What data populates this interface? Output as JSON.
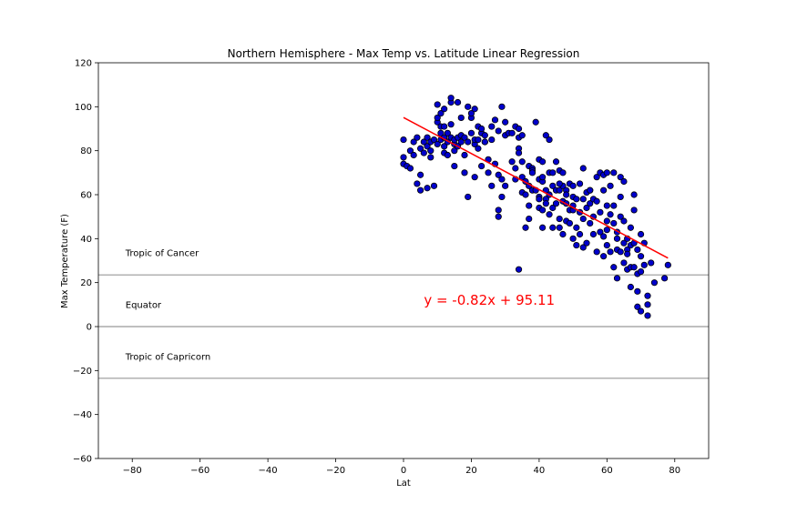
{
  "chart_data": {
    "type": "scatter",
    "title": "Northern Hemisphere - Max Temp vs. Latitude Linear Regression",
    "xlabel": "Lat",
    "ylabel": "Max Temperature (F)",
    "xlim": [
      -90,
      90
    ],
    "ylim": [
      -60,
      120
    ],
    "xticks": [
      -80,
      -60,
      -40,
      -20,
      0,
      20,
      40,
      60,
      80
    ],
    "yticks": [
      -60,
      -40,
      -20,
      0,
      20,
      40,
      60,
      80,
      100,
      120
    ],
    "grid": false,
    "point_color": "#0000cc",
    "point_edge": "#000000",
    "regression": {
      "slope": -0.82,
      "intercept": 95.11,
      "x_range": [
        0,
        78
      ],
      "color": "#ff0000",
      "equation": "y = -0.82x + 95.11",
      "label_x": 6,
      "label_y": 10
    },
    "reference_lines": [
      {
        "label": "Tropic of Cancer",
        "y": 23.5,
        "label_x": -82,
        "label_y": 32
      },
      {
        "label": "Equator",
        "y": 0,
        "label_x": -82,
        "label_y": 8.5
      },
      {
        "label": "Tropic of Capricorn",
        "y": -23.5,
        "label_x": -82,
        "label_y": -15
      }
    ],
    "reference_line_color": "#999999",
    "points": [
      [
        0,
        85
      ],
      [
        0,
        77
      ],
      [
        0,
        74
      ],
      [
        1,
        73
      ],
      [
        2,
        80
      ],
      [
        2,
        72
      ],
      [
        3,
        78
      ],
      [
        3,
        84
      ],
      [
        4,
        65
      ],
      [
        4,
        86
      ],
      [
        5,
        81
      ],
      [
        5,
        69
      ],
      [
        5,
        62
      ],
      [
        6,
        84
      ],
      [
        6,
        79
      ],
      [
        7,
        82
      ],
      [
        7,
        86
      ],
      [
        7,
        63
      ],
      [
        8,
        80
      ],
      [
        8,
        77
      ],
      [
        8,
        84
      ],
      [
        9,
        64
      ],
      [
        9,
        85
      ],
      [
        10,
        83
      ],
      [
        10,
        101
      ],
      [
        10,
        93
      ],
      [
        10,
        95
      ],
      [
        11,
        91
      ],
      [
        11,
        97
      ],
      [
        11,
        88
      ],
      [
        11,
        85
      ],
      [
        12,
        86
      ],
      [
        12,
        82
      ],
      [
        12,
        79
      ],
      [
        12,
        91
      ],
      [
        12,
        99
      ],
      [
        13,
        78
      ],
      [
        13,
        84
      ],
      [
        13,
        88
      ],
      [
        14,
        102
      ],
      [
        14,
        104
      ],
      [
        14,
        86
      ],
      [
        14,
        92
      ],
      [
        15,
        83
      ],
      [
        15,
        80
      ],
      [
        15,
        73
      ],
      [
        15,
        85
      ],
      [
        16,
        102
      ],
      [
        16,
        86
      ],
      [
        16,
        82
      ],
      [
        17,
        84
      ],
      [
        17,
        95
      ],
      [
        17,
        87
      ],
      [
        18,
        78
      ],
      [
        18,
        86
      ],
      [
        18,
        70
      ],
      [
        19,
        59
      ],
      [
        19,
        100
      ],
      [
        19,
        84
      ],
      [
        20,
        88
      ],
      [
        20,
        95
      ],
      [
        20,
        97
      ],
      [
        21,
        83
      ],
      [
        21,
        99
      ],
      [
        21,
        85
      ],
      [
        21,
        68
      ],
      [
        22,
        85
      ],
      [
        22,
        91
      ],
      [
        22,
        81
      ],
      [
        23,
        88
      ],
      [
        23,
        90
      ],
      [
        23,
        73
      ],
      [
        24,
        84
      ],
      [
        24,
        84
      ],
      [
        24,
        87
      ],
      [
        25,
        76
      ],
      [
        25,
        70
      ],
      [
        26,
        91
      ],
      [
        26,
        85
      ],
      [
        26,
        64
      ],
      [
        27,
        94
      ],
      [
        27,
        74
      ],
      [
        28,
        89
      ],
      [
        28,
        53
      ],
      [
        28,
        50
      ],
      [
        28,
        69
      ],
      [
        29,
        100
      ],
      [
        29,
        67
      ],
      [
        29,
        59
      ],
      [
        30,
        87
      ],
      [
        30,
        93
      ],
      [
        30,
        64
      ],
      [
        31,
        88
      ],
      [
        32,
        75
      ],
      [
        32,
        88
      ],
      [
        33,
        91
      ],
      [
        33,
        72
      ],
      [
        33,
        67
      ],
      [
        34,
        86
      ],
      [
        34,
        90
      ],
      [
        34,
        81
      ],
      [
        34,
        26
      ],
      [
        35,
        87
      ],
      [
        35,
        75
      ],
      [
        35,
        68
      ],
      [
        35,
        61
      ],
      [
        36,
        60
      ],
      [
        36,
        66
      ],
      [
        36,
        45
      ],
      [
        37,
        49
      ],
      [
        37,
        55
      ],
      [
        37,
        64
      ],
      [
        37,
        73
      ],
      [
        38,
        72
      ],
      [
        38,
        71
      ],
      [
        38,
        62
      ],
      [
        39,
        93
      ],
      [
        39,
        62
      ],
      [
        40,
        76
      ],
      [
        40,
        67
      ],
      [
        40,
        59
      ],
      [
        40,
        58
      ],
      [
        40,
        54
      ],
      [
        41,
        66
      ],
      [
        41,
        75
      ],
      [
        41,
        53
      ],
      [
        41,
        45
      ],
      [
        42,
        87
      ],
      [
        42,
        62
      ],
      [
        42,
        58
      ],
      [
        42,
        56
      ],
      [
        43,
        70
      ],
      [
        43,
        85
      ],
      [
        43,
        60
      ],
      [
        43,
        51
      ],
      [
        44,
        70
      ],
      [
        44,
        64
      ],
      [
        44,
        54
      ],
      [
        44,
        45
      ],
      [
        45,
        75
      ],
      [
        45,
        62
      ],
      [
        45,
        56
      ],
      [
        46,
        71
      ],
      [
        46,
        62
      ],
      [
        46,
        49
      ],
      [
        46,
        45
      ],
      [
        47,
        64
      ],
      [
        47,
        57
      ],
      [
        47,
        42
      ],
      [
        47,
        70
      ],
      [
        48,
        62
      ],
      [
        48,
        56
      ],
      [
        48,
        48
      ],
      [
        48,
        60
      ],
      [
        49,
        65
      ],
      [
        49,
        53
      ],
      [
        49,
        47
      ],
      [
        50,
        59
      ],
      [
        50,
        64
      ],
      [
        50,
        40
      ],
      [
        50,
        53
      ],
      [
        51,
        58
      ],
      [
        51,
        45
      ],
      [
        51,
        37
      ],
      [
        52,
        65
      ],
      [
        52,
        52
      ],
      [
        52,
        42
      ],
      [
        53,
        72
      ],
      [
        53,
        58
      ],
      [
        53,
        49
      ],
      [
        53,
        36
      ],
      [
        54,
        61
      ],
      [
        54,
        54
      ],
      [
        54,
        38
      ],
      [
        55,
        62
      ],
      [
        55,
        56
      ],
      [
        55,
        47
      ],
      [
        56,
        58
      ],
      [
        56,
        42
      ],
      [
        57,
        68
      ],
      [
        57,
        57
      ],
      [
        57,
        34
      ],
      [
        58,
        70
      ],
      [
        58,
        52
      ],
      [
        58,
        43
      ],
      [
        59,
        69
      ],
      [
        59,
        62
      ],
      [
        59,
        41
      ],
      [
        59,
        32
      ],
      [
        60,
        70
      ],
      [
        60,
        55
      ],
      [
        60,
        44
      ],
      [
        60,
        37
      ],
      [
        61,
        64
      ],
      [
        61,
        51
      ],
      [
        61,
        34
      ],
      [
        62,
        70
      ],
      [
        62,
        55
      ],
      [
        62,
        47
      ],
      [
        62,
        27
      ],
      [
        63,
        43
      ],
      [
        63,
        35
      ],
      [
        63,
        22
      ],
      [
        64,
        68
      ],
      [
        64,
        59
      ],
      [
        64,
        50
      ],
      [
        64,
        34
      ],
      [
        65,
        66
      ],
      [
        65,
        48
      ],
      [
        65,
        38
      ],
      [
        65,
        29
      ],
      [
        66,
        35
      ],
      [
        66,
        40
      ],
      [
        66,
        26
      ],
      [
        67,
        37
      ],
      [
        67,
        27
      ],
      [
        67,
        18
      ],
      [
        68,
        38
      ],
      [
        68,
        60
      ],
      [
        68,
        53
      ],
      [
        68,
        27
      ],
      [
        69,
        35
      ],
      [
        69,
        24
      ],
      [
        69,
        16
      ],
      [
        69,
        9
      ],
      [
        70,
        42
      ],
      [
        70,
        32
      ],
      [
        70,
        25
      ],
      [
        70,
        7
      ],
      [
        71,
        38
      ],
      [
        71,
        28
      ],
      [
        72,
        14
      ],
      [
        72,
        10
      ],
      [
        72,
        5
      ],
      [
        73,
        29
      ],
      [
        74,
        20
      ],
      [
        77,
        22
      ],
      [
        78,
        28
      ],
      [
        34,
        79
      ],
      [
        38,
        70
      ],
      [
        41,
        68
      ],
      [
        46,
        65
      ],
      [
        55,
        62
      ],
      [
        60,
        48
      ],
      [
        66,
        33
      ],
      [
        50,
        55
      ],
      [
        56,
        50
      ],
      [
        63,
        40
      ],
      [
        67,
        45
      ]
    ]
  }
}
